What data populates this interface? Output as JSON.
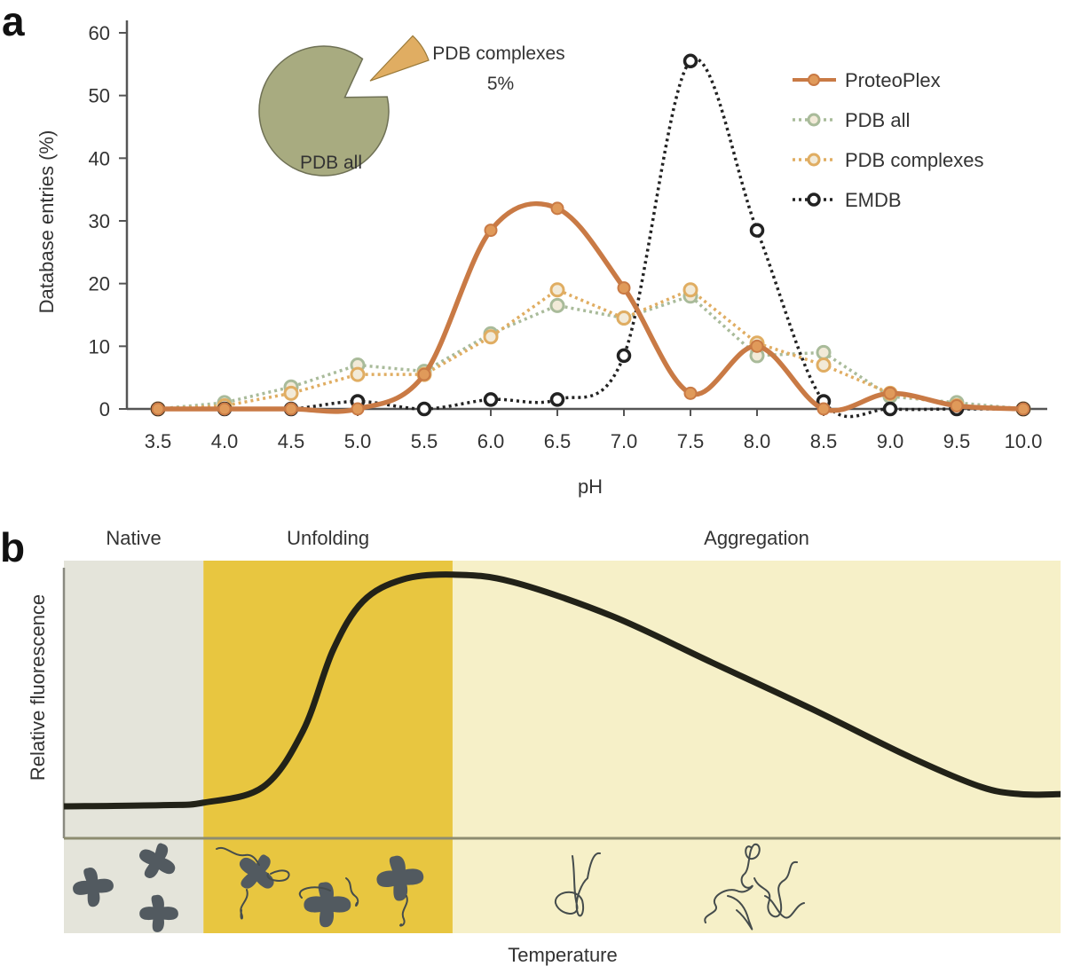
{
  "panels": {
    "a": {
      "letter": "a"
    },
    "b": {
      "letter": "b"
    }
  },
  "chart_data": [
    {
      "id": "panel-a",
      "type": "line",
      "title": "",
      "xlabel": "pH",
      "ylabel": "Database entries (%)",
      "x": [
        3.5,
        4.0,
        4.5,
        5.0,
        5.5,
        6.0,
        6.5,
        7.0,
        7.5,
        8.0,
        8.5,
        9.0,
        9.5,
        10.0
      ],
      "x_tick_labels": [
        "3.5",
        "4.0",
        "4.5",
        "5.0",
        "5.5",
        "6.0",
        "6.5",
        "7.0",
        "7.5",
        "8.0",
        "8.5",
        "9.0",
        "9.5",
        "10.0"
      ],
      "ylim": [
        0,
        60
      ],
      "y_ticks": [
        0,
        10,
        20,
        30,
        40,
        50,
        60
      ],
      "y_tick_labels": [
        "0",
        "10",
        "20",
        "30",
        "40",
        "50",
        "60"
      ],
      "grid": false,
      "legend_position": "top-right",
      "series": [
        {
          "name": "ProteoPlex",
          "style": "solid-smooth",
          "color": "#c97a45",
          "values": [
            0,
            0,
            0,
            0,
            5.5,
            28.5,
            32,
            19.3,
            2.5,
            10,
            0,
            2.5,
            0.5,
            0
          ]
        },
        {
          "name": "PDB all",
          "style": "dotted",
          "color": "#a9bb9a",
          "values": [
            0,
            1,
            3.5,
            7,
            6,
            12,
            16.5,
            14.5,
            18,
            8.5,
            9,
            2,
            1,
            0
          ]
        },
        {
          "name": "PDB complexes",
          "style": "dotted",
          "color": "#e0ad62",
          "values": [
            0,
            0.5,
            2.5,
            5.5,
            5.5,
            11.5,
            19,
            14.5,
            19,
            10.5,
            7,
            2.5,
            0.5,
            0
          ]
        },
        {
          "name": "EMDB",
          "style": "dotted-smooth",
          "color": "#222222",
          "values": [
            0,
            0,
            0,
            1.2,
            0,
            1.5,
            1.5,
            8.5,
            55.5,
            28.5,
            1.2,
            0,
            0,
            0
          ]
        }
      ],
      "inset_pie": {
        "type": "pie",
        "slices": [
          {
            "label": "PDB all",
            "value": 95,
            "color": "#a8ab80"
          },
          {
            "label": "PDB complexes",
            "value": 5,
            "value_label": "5%",
            "color": "#e0ad62",
            "exploded": true
          }
        ]
      }
    },
    {
      "id": "panel-b",
      "type": "line",
      "title": "",
      "xlabel": "Temperature",
      "ylabel": "Relative fluorescence",
      "regions": [
        {
          "label": "Native",
          "start": 0.0,
          "end": 0.14,
          "color": "#e4e4da"
        },
        {
          "label": "Unfolding",
          "start": 0.14,
          "end": 0.39,
          "color": "#e8c640"
        },
        {
          "label": "Aggregation",
          "start": 0.39,
          "end": 1.0,
          "color": "#f6f0c8"
        }
      ],
      "curve_color": "#222218",
      "series": [
        {
          "name": "Relative fluorescence",
          "x": [
            0.0,
            0.1,
            0.14,
            0.2,
            0.24,
            0.27,
            0.3,
            0.34,
            0.39,
            0.45,
            0.55,
            0.65,
            0.75,
            0.85,
            0.92,
            0.96,
            1.0
          ],
          "values": [
            0.04,
            0.045,
            0.055,
            0.12,
            0.35,
            0.68,
            0.88,
            0.97,
            0.99,
            0.96,
            0.82,
            0.63,
            0.44,
            0.24,
            0.12,
            0.09,
            0.09
          ]
        }
      ],
      "illustrations": [
        {
          "region": "Native",
          "description": "folded protein shapes",
          "count": 3
        },
        {
          "region": "Unfolding",
          "description": "partially unfolded proteins with loose chains",
          "count": 3
        },
        {
          "region": "Aggregation",
          "description": "unfolded chains and aggregated chains",
          "count": 2
        }
      ]
    }
  ]
}
